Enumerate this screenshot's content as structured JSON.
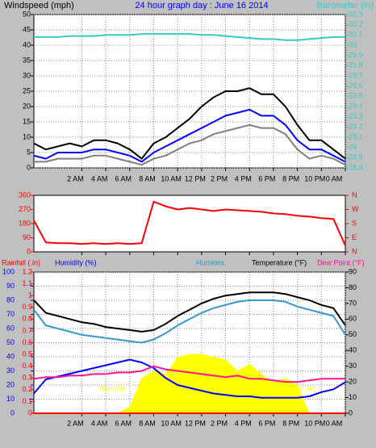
{
  "chart_data": [
    {
      "type": "line",
      "title": "24 hour graph day : June 16 2014",
      "ylabel": "Windspeed (mph)",
      "y2label": "Barometer (in)",
      "x": [
        -2,
        -1,
        0,
        1,
        2,
        3,
        4,
        5,
        6,
        7,
        8,
        9,
        10,
        11,
        12,
        13,
        14,
        15,
        16,
        17,
        18,
        19,
        20,
        21,
        22,
        23,
        24
      ],
      "xlim": [
        -2,
        24
      ],
      "xticks": [
        {
          "value": 2,
          "label": "2 AM"
        },
        {
          "value": 4,
          "label": "4 AM"
        },
        {
          "value": 6,
          "label": "6 AM"
        },
        {
          "value": 8,
          "label": "8 AM"
        },
        {
          "value": 10,
          "label": "10 AM"
        },
        {
          "value": 12,
          "label": "12 PM"
        },
        {
          "value": 14,
          "label": "2 PM"
        },
        {
          "value": 16,
          "label": "4 PM"
        },
        {
          "value": 18,
          "label": "6 PM"
        },
        {
          "value": 20,
          "label": "8 PM"
        },
        {
          "value": 22,
          "label": "10 PM"
        },
        {
          "value": 24,
          "label": "0 AM"
        }
      ],
      "ylim": [
        0,
        50
      ],
      "yticks": [
        0,
        5,
        10,
        15,
        20,
        25,
        30,
        35,
        40,
        45,
        50
      ],
      "ycolor": "#000000",
      "y2lim": [
        28.8,
        30.3
      ],
      "y2ticks": [
        28.8,
        28.9,
        29,
        29.1,
        29.2,
        29.3,
        29.4,
        29.5,
        29.6,
        29.7,
        29.8,
        29.9,
        30,
        30.1,
        30.2,
        30.3
      ],
      "y2color": "#33cccc",
      "grid": true,
      "series": [
        {
          "color": "#808080",
          "axis": "y",
          "values": [
            2,
            2,
            3,
            3,
            3,
            4,
            4,
            3,
            2,
            1,
            3,
            4,
            6,
            8,
            9,
            11,
            12,
            13,
            14,
            13,
            13,
            11,
            6,
            3,
            4,
            3,
            1
          ]
        },
        {
          "color": "#000000",
          "axis": "y",
          "values": [
            8,
            6,
            7,
            8,
            7,
            9,
            9,
            8,
            6,
            3,
            8,
            10,
            13,
            16,
            20,
            23,
            25,
            25,
            26,
            24,
            24,
            20,
            14,
            9,
            9,
            6,
            3
          ]
        },
        {
          "color": "#0000ff",
          "axis": "y",
          "values": [
            4,
            3,
            5,
            5,
            5,
            6,
            6,
            5,
            4,
            2,
            5,
            7,
            9,
            11,
            13,
            15,
            17,
            18,
            19,
            17,
            17,
            14,
            9,
            6,
            6,
            4,
            2
          ]
        },
        {
          "color": "#33cccc",
          "axis": "y2",
          "values": [
            30.08,
            30.08,
            30.08,
            30.09,
            30.09,
            30.09,
            30.1,
            30.1,
            30.1,
            30.11,
            30.11,
            30.11,
            30.11,
            30.11,
            30.1,
            30.1,
            30.09,
            30.08,
            30.07,
            30.06,
            30.06,
            30.05,
            30.05,
            30.06,
            30.07,
            30.08,
            30.08
          ]
        }
      ]
    },
    {
      "type": "line",
      "x": [
        -2,
        -1,
        0,
        1,
        2,
        3,
        4,
        5,
        6,
        7,
        8,
        9,
        10,
        11,
        12,
        13,
        14,
        15,
        16,
        17,
        18,
        19,
        20,
        21,
        22,
        23,
        24
      ],
      "xlim": [
        -2,
        24
      ],
      "xticks": [
        2,
        4,
        6,
        8,
        10,
        12,
        14,
        16,
        18,
        20,
        22,
        24
      ],
      "ylim": [
        0,
        360
      ],
      "yticks": [
        0,
        90,
        180,
        270,
        360
      ],
      "ycolor": "#ff0000",
      "y2lim": [
        0,
        360
      ],
      "y2ticks": [
        {
          "value": 0,
          "label": "N"
        },
        {
          "value": 90,
          "label": "E"
        },
        {
          "value": 180,
          "label": "S"
        },
        {
          "value": 270,
          "label": "W"
        },
        {
          "value": 360,
          "label": "N"
        }
      ],
      "y2color": "#ff0000",
      "grid": false,
      "series": [
        {
          "color": "#ff0000",
          "axis": "y",
          "values": [
            200,
            60,
            55,
            55,
            50,
            55,
            50,
            55,
            50,
            55,
            320,
            290,
            270,
            280,
            270,
            260,
            270,
            265,
            260,
            255,
            245,
            240,
            230,
            225,
            215,
            210,
            40
          ]
        }
      ]
    },
    {
      "type": "line",
      "x": [
        -2,
        -1,
        0,
        1,
        2,
        3,
        4,
        5,
        6,
        7,
        8,
        9,
        10,
        11,
        12,
        13,
        14,
        15,
        16,
        17,
        18,
        19,
        20,
        21,
        22,
        23,
        24
      ],
      "xlim": [
        -2,
        24
      ],
      "xticks": [
        {
          "value": 2,
          "label": "2 AM"
        },
        {
          "value": 4,
          "label": "4 AM"
        },
        {
          "value": 6,
          "label": "6 AM"
        },
        {
          "value": 8,
          "label": "8 AM"
        },
        {
          "value": 10,
          "label": "10 AM"
        },
        {
          "value": 12,
          "label": "12 PM"
        },
        {
          "value": 14,
          "label": "2 PM"
        },
        {
          "value": 16,
          "label": "4 PM"
        },
        {
          "value": 18,
          "label": "6 PM"
        },
        {
          "value": 20,
          "label": "8 PM"
        },
        {
          "value": 22,
          "label": "10 PM"
        },
        {
          "value": 24,
          "label": "0 AM"
        }
      ],
      "ylim": [
        0,
        100
      ],
      "yticks": [
        0,
        10,
        20,
        30,
        40,
        50,
        60,
        70,
        80,
        90,
        100
      ],
      "ycolor": "#0000ff",
      "y3lim": [
        0,
        1.2
      ],
      "y3ticks": [
        0,
        0.1,
        0.2,
        0.3,
        0.4,
        0.5,
        0.6,
        0.7,
        0.8,
        0.9,
        1,
        1.1,
        1.2
      ],
      "y3color": "#ff0000",
      "y2lim": [
        0,
        90
      ],
      "y2ticks": [
        0,
        10,
        20,
        30,
        40,
        50,
        60,
        70,
        80,
        90
      ],
      "y2color": "#000000",
      "grid": true,
      "annotations": [
        "Sun rise",
        "Sun set"
      ],
      "series": [
        {
          "type": "area",
          "color": "#ffff00",
          "axis": "y",
          "values": [
            0,
            0,
            0,
            0,
            0,
            0,
            0,
            0,
            5,
            25,
            30,
            28,
            40,
            42,
            42,
            40,
            38,
            30,
            35,
            28,
            22,
            25,
            20,
            0,
            0,
            0,
            0
          ]
        },
        {
          "name": "Rainfall (.in)",
          "color": "#ff0000",
          "axis": "y3",
          "values": [
            0,
            0,
            0,
            0,
            0,
            0,
            0,
            0,
            0,
            0,
            0,
            0,
            0,
            0,
            0,
            0,
            0,
            0,
            0,
            0,
            0,
            0,
            0,
            0,
            0,
            0,
            0
          ]
        },
        {
          "name": "Humidity (%)",
          "color": "#0000ff",
          "axis": "y",
          "values": [
            14,
            24,
            26,
            28,
            30,
            32,
            34,
            36,
            38,
            36,
            32,
            25,
            20,
            18,
            16,
            14,
            13,
            12,
            12,
            11,
            11,
            11,
            11,
            12,
            15,
            17,
            22
          ]
        },
        {
          "name": "Humidex",
          "color": "#3399cc",
          "axis": "y2",
          "values": [
            66,
            56,
            54,
            52,
            50,
            49,
            48,
            47,
            46,
            45,
            47,
            51,
            56,
            60,
            64,
            67,
            69,
            71,
            72,
            72,
            72,
            71,
            68,
            66,
            64,
            62,
            50
          ]
        },
        {
          "name": "Temperature (°F)",
          "color": "#000000",
          "axis": "y2",
          "values": [
            72,
            64,
            62,
            60,
            58,
            57,
            55,
            54,
            53,
            52,
            53,
            57,
            62,
            66,
            70,
            73,
            75,
            76,
            77,
            77,
            77,
            76,
            74,
            72,
            69,
            67,
            56
          ]
        },
        {
          "name": "Dew Point (°F)",
          "color": "#ff1493",
          "axis": "y2",
          "values": [
            22,
            23,
            23,
            24,
            24,
            25,
            25,
            26,
            26,
            27,
            30,
            28,
            27,
            26,
            25,
            24,
            23,
            24,
            22,
            22,
            21,
            20,
            20,
            21,
            22,
            22,
            22
          ]
        }
      ]
    }
  ]
}
